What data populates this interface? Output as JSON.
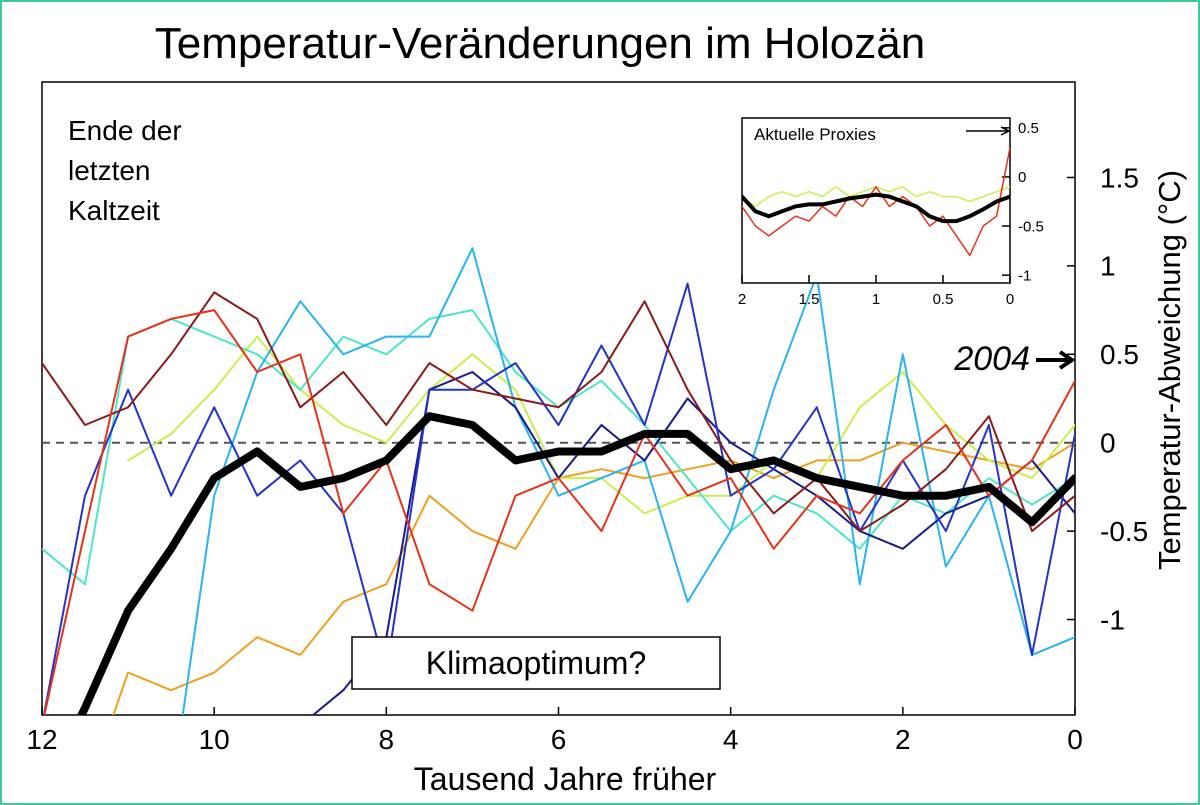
{
  "chart_data": [
    {
      "type": "line",
      "title": "Temperatur-Veränderungen im Holozän",
      "x_label": "Tausend Jahre früher",
      "y_label": "Temperatur-Abweichung (°C)",
      "annotation_lines": [
        "Ende der",
        "letzten",
        "Kaltzeit"
      ],
      "box_annotation": "Klimaoptimum?",
      "arrow_annotation": "2004",
      "x": [
        12,
        11.5,
        11,
        10.5,
        10,
        9.5,
        9,
        8.5,
        8,
        7.5,
        7,
        6.5,
        6,
        5.5,
        5,
        4.5,
        4,
        3.5,
        3,
        2.5,
        2,
        1.5,
        1,
        0.5,
        0
      ],
      "xlim": [
        12,
        0
      ],
      "ylim": [
        -1.54,
        2.04
      ],
      "xticks": [
        12,
        10,
        8,
        6,
        4,
        2,
        0
      ],
      "yticks": [
        -1,
        -0.5,
        0,
        0.5,
        1,
        1.5
      ],
      "hline": 0,
      "series": [
        {
          "color": "#f0a020",
          "width": 2,
          "values": [
            null,
            -2,
            -1.3,
            -1.4,
            -1.3,
            -1.1,
            -1.2,
            -0.9,
            -0.8,
            -0.3,
            -0.5,
            -0.6,
            -0.2,
            -0.15,
            -0.2,
            -0.15,
            -0.1,
            -0.2,
            -0.1,
            -0.1,
            0.0,
            -0.05,
            -0.1,
            -0.15,
            0.0
          ]
        },
        {
          "color": "#c8f04d",
          "width": 2,
          "values": [
            null,
            null,
            -0.1,
            0.05,
            0.3,
            0.6,
            0.3,
            0.1,
            0.0,
            0.3,
            0.5,
            0.3,
            -0.2,
            -0.2,
            -0.4,
            -0.3,
            -0.3,
            -0.1,
            -0.2,
            0.2,
            0.4,
            0.1,
            -0.1,
            -0.2,
            0.1
          ]
        },
        {
          "color": "#4de6c8",
          "width": 2,
          "values": [
            -0.6,
            -0.8,
            0.6,
            0.7,
            0.6,
            0.5,
            0.3,
            0.6,
            0.5,
            0.7,
            0.75,
            0.4,
            0.2,
            0.35,
            0.1,
            -0.2,
            -0.5,
            -0.3,
            -0.4,
            -0.6,
            -0.3,
            -0.4,
            -0.2,
            -0.35,
            -0.2
          ]
        },
        {
          "color": "#28b4f0",
          "width": 2,
          "values": [
            null,
            null,
            null,
            -2,
            -0.3,
            0.4,
            0.8,
            0.5,
            0.6,
            0.6,
            1.1,
            0.2,
            -0.3,
            -0.2,
            -0.1,
            -0.9,
            -0.5,
            0.3,
            0.95,
            -0.8,
            0.5,
            -0.7,
            -0.3,
            -1.2,
            -1.1
          ]
        },
        {
          "color": "#1a1a8b",
          "width": 2,
          "values": [
            null,
            null,
            null,
            null,
            null,
            -1.8,
            -1.6,
            -1.4,
            -1.1,
            0.3,
            0.4,
            0.2,
            -0.2,
            0.1,
            -0.1,
            0.25,
            0,
            -0.15,
            -0.3,
            -0.5,
            -0.6,
            -0.4,
            -0.3,
            -0.1,
            -0.4
          ]
        },
        {
          "color": "#2233cc",
          "width": 2,
          "values": [
            -1.6,
            -0.3,
            0.3,
            -0.3,
            0.2,
            -0.3,
            -0.1,
            -0.4,
            -1.3,
            0.3,
            0.3,
            0.45,
            0.1,
            0.55,
            0.1,
            0.9,
            -0.3,
            -0.15,
            0.2,
            -0.5,
            -0.1,
            -0.5,
            0.1,
            -1.2,
            0.05
          ]
        },
        {
          "color": "#8b1a1a",
          "width": 2,
          "values": [
            0.45,
            0.1,
            0.2,
            0.5,
            0.85,
            0.7,
            0.2,
            0.4,
            0.1,
            0.45,
            0.3,
            0.25,
            0.2,
            0.4,
            0.8,
            0.3,
            -0.1,
            -0.4,
            -0.2,
            -0.5,
            -0.35,
            -0.15,
            0.15,
            -0.5,
            -0.3
          ]
        },
        {
          "color": "#e8311a",
          "width": 2,
          "values": [
            -1.6,
            -0.5,
            0.6,
            0.7,
            0.75,
            0.4,
            0.5,
            -0.4,
            -0.1,
            -0.8,
            -0.95,
            -0.3,
            -0.2,
            -0.5,
            0.05,
            -0.3,
            -0.2,
            -0.6,
            -0.3,
            -0.4,
            -0.1,
            0.1,
            -0.3,
            -0.1,
            0.35
          ]
        },
        {
          "color": "#000000",
          "width": 8,
          "values": [
            -2,
            -1.5,
            -0.95,
            -0.6,
            -0.2,
            -0.05,
            -0.25,
            -0.2,
            -0.1,
            0.15,
            0.1,
            -0.1,
            -0.05,
            -0.05,
            0.05,
            0.05,
            -0.15,
            -0.1,
            -0.2,
            -0.25,
            -0.3,
            -0.3,
            -0.25,
            -0.45,
            -0.2
          ]
        }
      ]
    },
    {
      "type": "line",
      "title": "Aktuelle Proxies",
      "x": [
        2,
        1.9,
        1.8,
        1.7,
        1.6,
        1.5,
        1.4,
        1.3,
        1.2,
        1.1,
        1,
        0.9,
        0.8,
        0.7,
        0.6,
        0.5,
        0.4,
        0.3,
        0.2,
        0.1,
        0
      ],
      "xlim": [
        2,
        0
      ],
      "ylim": [
        -1.08,
        0.6
      ],
      "xticks": [
        2,
        1.5,
        1,
        0.5,
        0
      ],
      "yticks": [
        -1,
        -0.5,
        0,
        0.5
      ],
      "series": [
        {
          "color": "#c8f04d",
          "width": 1.5,
          "values": [
            -0.2,
            -0.3,
            -0.2,
            -0.15,
            -0.2,
            -0.15,
            -0.2,
            -0.1,
            -0.2,
            -0.15,
            -0.1,
            -0.15,
            -0.1,
            -0.2,
            -0.15,
            -0.2,
            -0.2,
            -0.25,
            -0.2,
            -0.15,
            -0.1
          ]
        },
        {
          "color": "#e8311a",
          "width": 1.5,
          "values": [
            -0.3,
            -0.5,
            -0.6,
            -0.5,
            -0.4,
            -0.45,
            -0.3,
            -0.4,
            -0.2,
            -0.3,
            -0.1,
            -0.3,
            -0.2,
            -0.3,
            -0.5,
            -0.4,
            -0.6,
            -0.8,
            -0.5,
            -0.4,
            0.3
          ]
        },
        {
          "color": "#000000",
          "width": 4,
          "values": [
            -0.2,
            -0.35,
            -0.4,
            -0.35,
            -0.3,
            -0.28,
            -0.28,
            -0.25,
            -0.22,
            -0.2,
            -0.18,
            -0.2,
            -0.25,
            -0.3,
            -0.4,
            -0.45,
            -0.45,
            -0.4,
            -0.33,
            -0.25,
            -0.2
          ]
        }
      ]
    }
  ]
}
